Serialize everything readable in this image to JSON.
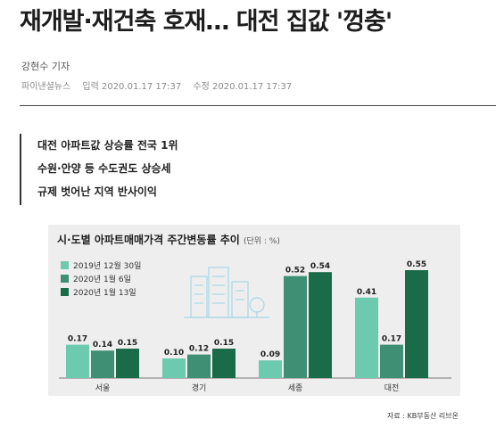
{
  "article": {
    "headline": "재개발·재건축 호재… 대전 집값 '껑충'",
    "author": "강현수 기자",
    "outlet": "파이낸셜뉴스",
    "published": "입력 2020.01.17 17:37",
    "modified": "수정 2020.01.17 17:37",
    "summary": [
      "대전 아파트값 상승률 전국 1위",
      "수원·안양 등 수도권도 상승세",
      "규제 벗어난 지역 반사이익"
    ]
  },
  "colors": {
    "series1": "#6ccaae",
    "series2": "#3e8f73",
    "series3": "#1a6b4a",
    "panel": "#eeeeee",
    "illustration": "#a9d6e6"
  },
  "chart_data": {
    "type": "bar",
    "title": "시·도별 아파트매매가격 주간변동률 추이",
    "unit": "(단위 : %)",
    "categories": [
      "서울",
      "경기",
      "세종",
      "대전"
    ],
    "series": [
      {
        "name": "2019년 12월 30일",
        "values": [
          0.17,
          0.1,
          0.09,
          0.41
        ]
      },
      {
        "name": "2020년 1월 6일",
        "values": [
          0.14,
          0.12,
          0.52,
          0.17
        ]
      },
      {
        "name": "2020년 1월 13일",
        "values": [
          0.15,
          0.15,
          0.54,
          0.55
        ]
      }
    ],
    "ylim": [
      0,
      0.6
    ],
    "grid": false,
    "legend": "top-left",
    "source": "자료 : KB부동산 리브온"
  }
}
